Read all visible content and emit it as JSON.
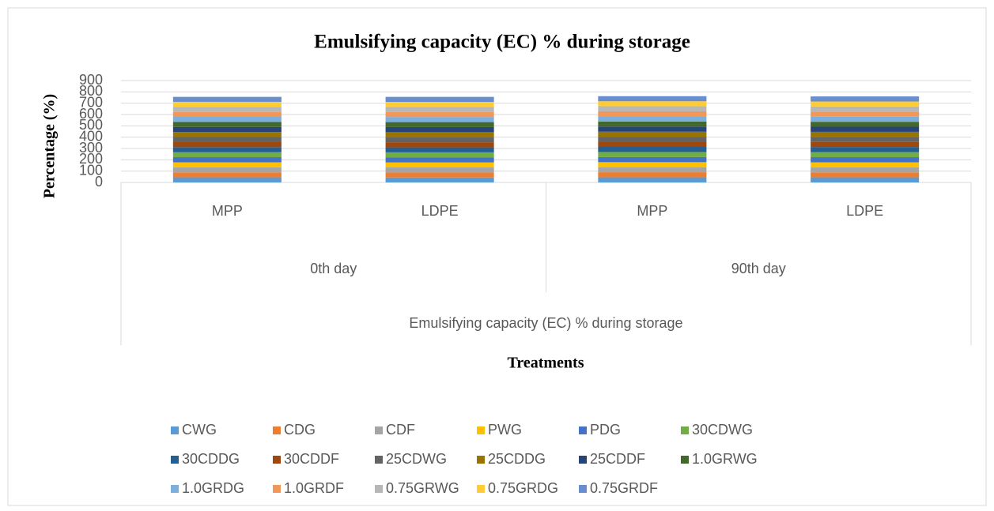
{
  "chart_data": {
    "type": "stacked_bar",
    "title": "Emulsifying capacity (EC) % during storage",
    "y_label": "Percentage (%)",
    "x_label": "Treatments",
    "categories": [
      "MPP",
      "LDPE",
      "MPP",
      "LDPE"
    ],
    "category_groups": [
      "0th day",
      "90th day"
    ],
    "category_supergroup": "Emulsifying capacity (EC) % during storage",
    "ylim": [
      0,
      900
    ],
    "yticks": [
      0,
      100,
      200,
      300,
      400,
      500,
      600,
      700,
      800,
      900
    ],
    "grid": true,
    "legend": "bottom",
    "series": [
      {
        "name": "CWG",
        "color": "#5B9BD5",
        "values": [
          45,
          44,
          45,
          45
        ]
      },
      {
        "name": "CDG",
        "color": "#ED7D31",
        "values": [
          44,
          44,
          45,
          44
        ]
      },
      {
        "name": "CDF",
        "color": "#A5A5A5",
        "values": [
          45,
          45,
          45,
          45
        ]
      },
      {
        "name": "PWG",
        "color": "#FFC000",
        "values": [
          44,
          44,
          44,
          44
        ]
      },
      {
        "name": "PDG",
        "color": "#4472C4",
        "values": [
          45,
          45,
          45,
          45
        ]
      },
      {
        "name": "30CDWG",
        "color": "#70AD47",
        "values": [
          44,
          44,
          45,
          45
        ]
      },
      {
        "name": "30CDDG",
        "color": "#255E91",
        "values": [
          45,
          44,
          45,
          45
        ]
      },
      {
        "name": "30CDDF",
        "color": "#9E480E",
        "values": [
          44,
          45,
          45,
          44
        ]
      },
      {
        "name": "25CDWG",
        "color": "#636363",
        "values": [
          45,
          45,
          45,
          45
        ]
      },
      {
        "name": "25CDDG",
        "color": "#997300",
        "values": [
          44,
          44,
          44,
          45
        ]
      },
      {
        "name": "25CDDF",
        "color": "#264478",
        "values": [
          45,
          45,
          45,
          45
        ]
      },
      {
        "name": "1.0GRWG",
        "color": "#43682B",
        "values": [
          44,
          44,
          45,
          44
        ]
      },
      {
        "name": "1.0GRDG",
        "color": "#7CAFDD",
        "values": [
          45,
          45,
          45,
          45
        ]
      },
      {
        "name": "1.0GRDF",
        "color": "#F1975A",
        "values": [
          44,
          44,
          45,
          45
        ]
      },
      {
        "name": "0.75GRWG",
        "color": "#B7B7B7",
        "values": [
          45,
          45,
          45,
          45
        ]
      },
      {
        "name": "0.75GRDG",
        "color": "#FFCD33",
        "values": [
          44,
          44,
          44,
          44
        ]
      },
      {
        "name": "0.75GRDF",
        "color": "#698ED0",
        "values": [
          44,
          45,
          45,
          45
        ]
      }
    ]
  }
}
